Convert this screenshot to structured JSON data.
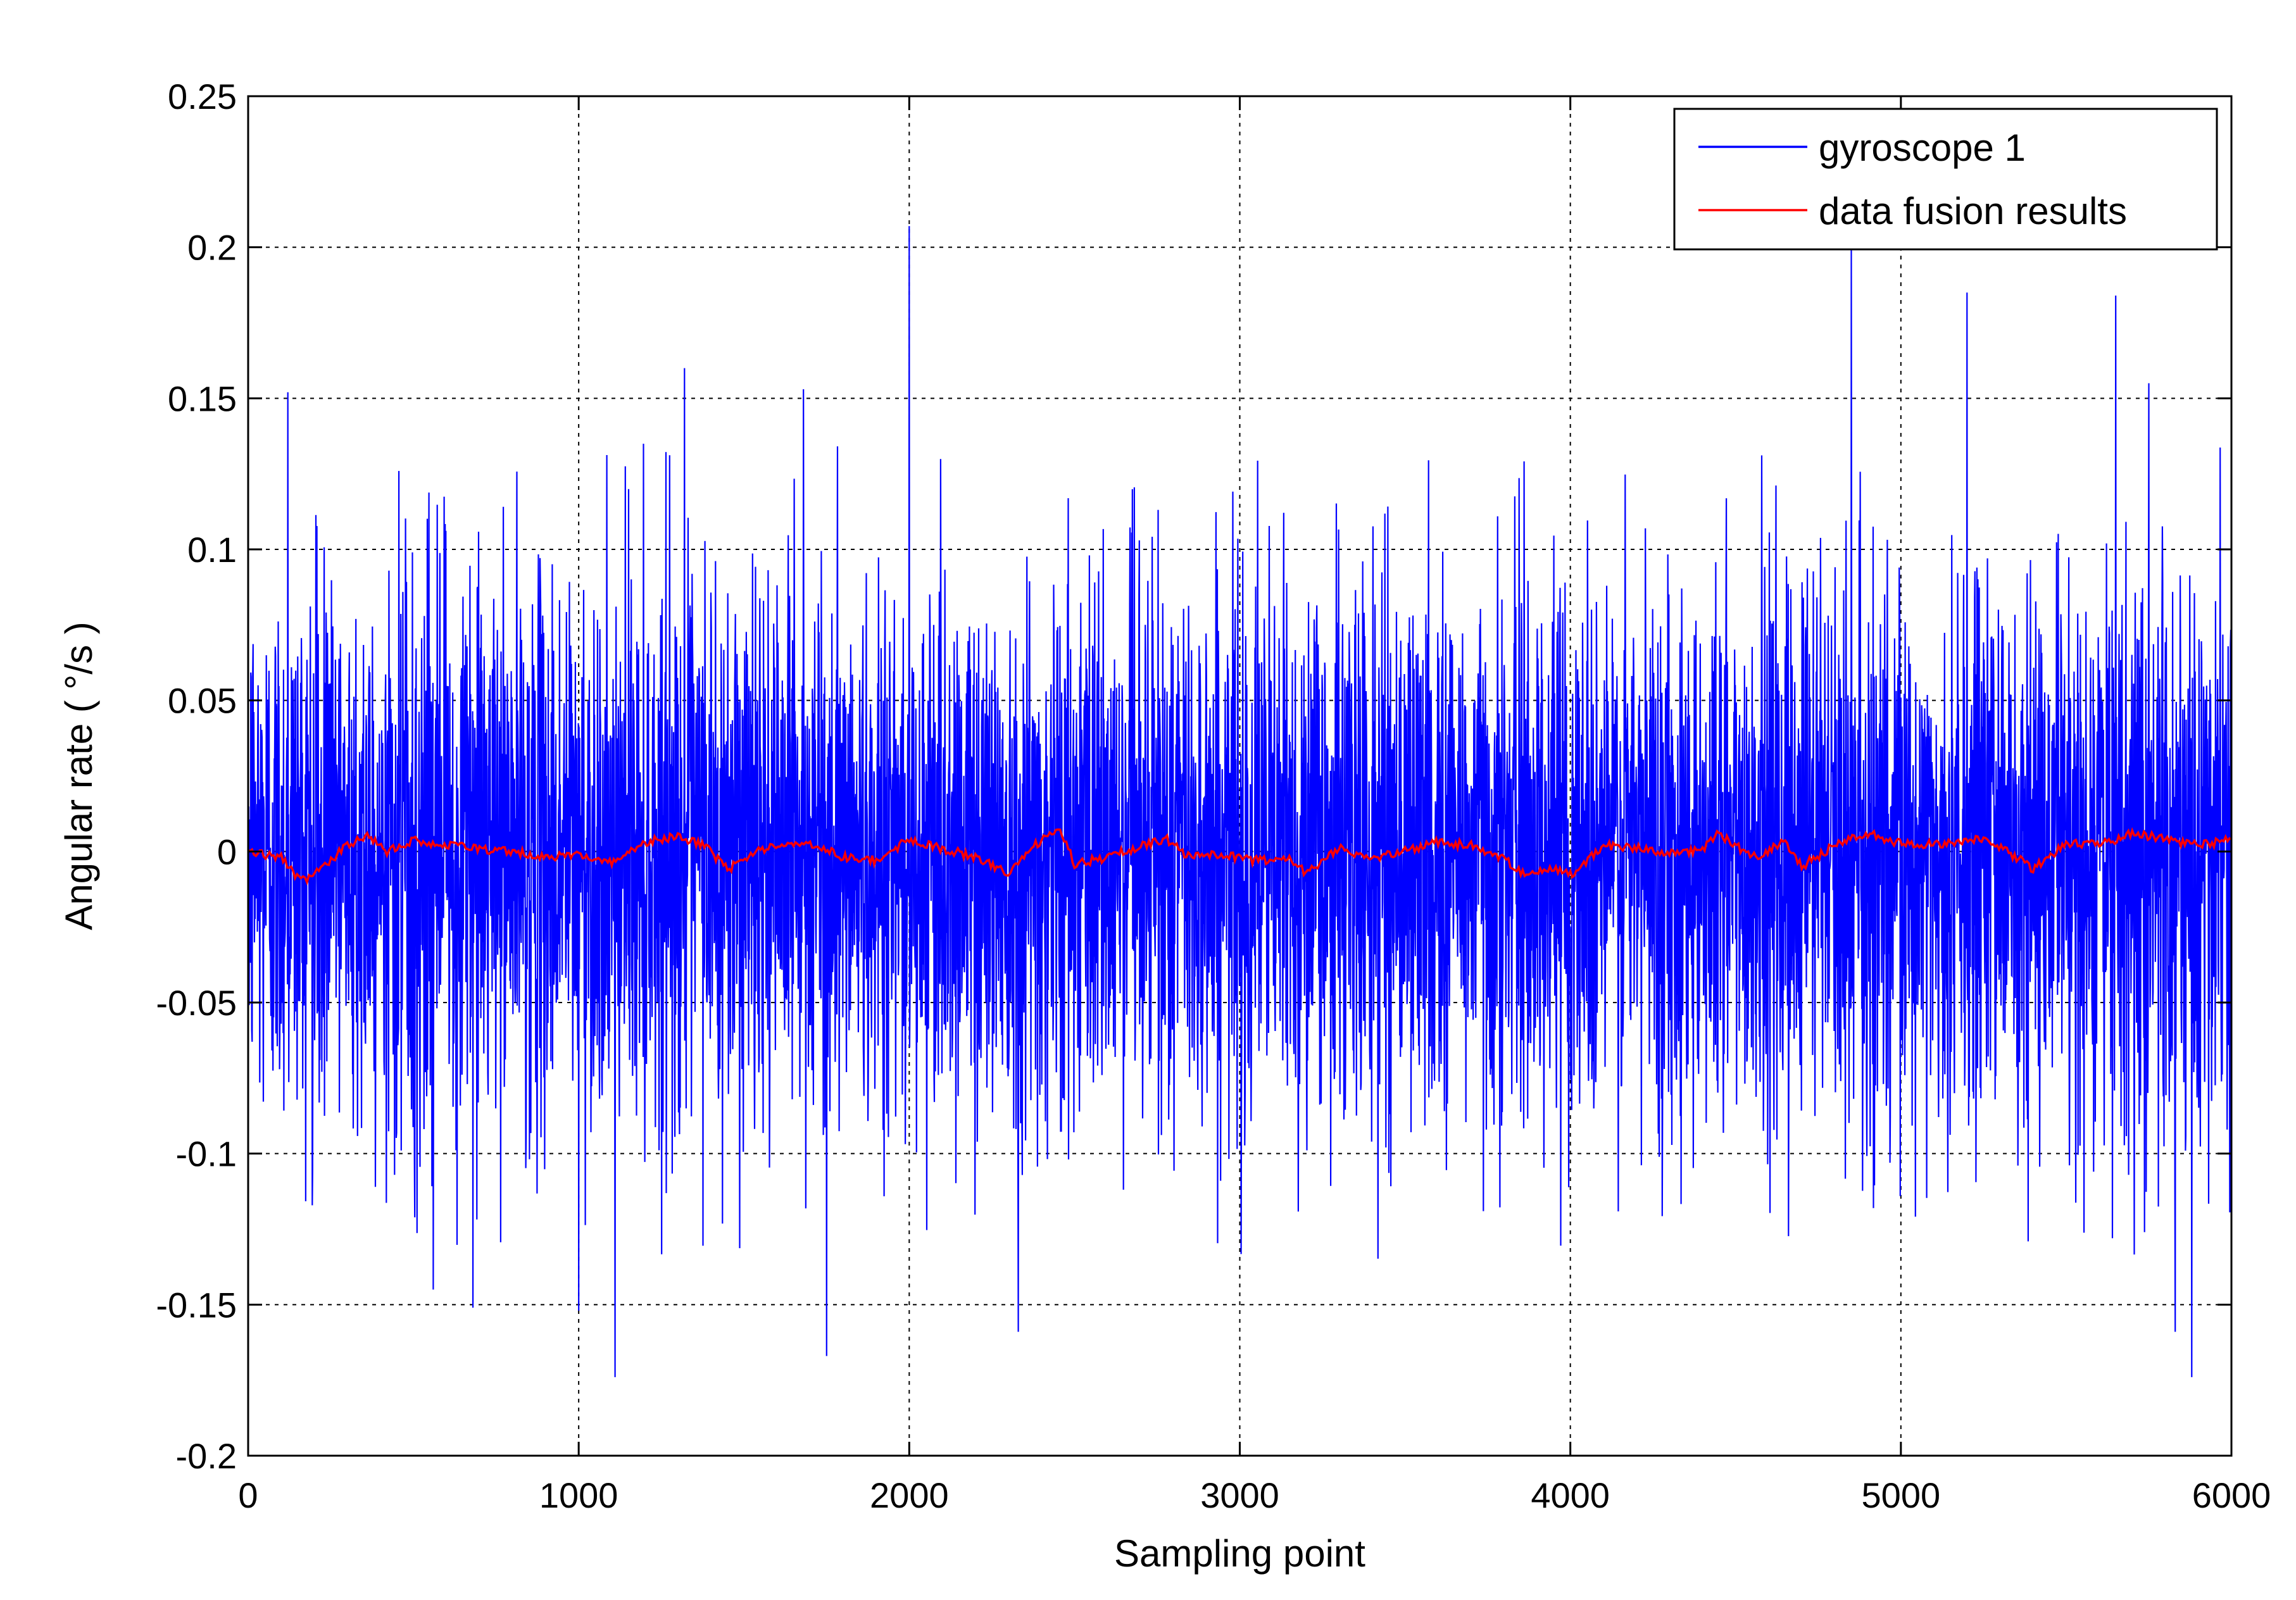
{
  "chart_data": {
    "type": "line",
    "title": "",
    "xlabel": "Sampling point",
    "ylabel": "Angular rate ( °/s )",
    "xlim": [
      0,
      6000
    ],
    "ylim": [
      -0.2,
      0.25
    ],
    "xticks": [
      0,
      1000,
      2000,
      3000,
      4000,
      5000,
      6000
    ],
    "xtick_labels": [
      "0",
      "1000",
      "2000",
      "3000",
      "4000",
      "5000",
      "6000"
    ],
    "yticks": [
      -0.2,
      -0.15,
      -0.1,
      -0.05,
      0,
      0.05,
      0.1,
      0.15,
      0.2,
      0.25
    ],
    "ytick_labels": [
      "-0.2",
      "-0.15",
      "-0.1",
      "-0.05",
      "0",
      "0.05",
      "0.1",
      "0.15",
      "0.2",
      "0.25"
    ],
    "grid": true,
    "legend_position": "top-right",
    "series": [
      {
        "name": "gyroscope 1",
        "color": "#0000ff",
        "description_level": "noise",
        "x_start": 0,
        "x_end": 6000,
        "noise_std": 0.045,
        "peaks": [
          {
            "x": 120,
            "y": 0.152
          },
          {
            "x": 680,
            "y": 0.16
          },
          {
            "x": 1320,
            "y": 0.16
          },
          {
            "x": 1680,
            "y": 0.153
          },
          {
            "x": 2000,
            "y": 0.207
          },
          {
            "x": 4850,
            "y": 0.2
          },
          {
            "x": 5200,
            "y": 0.185
          },
          {
            "x": 5650,
            "y": 0.184
          },
          {
            "x": 5750,
            "y": 0.155
          },
          {
            "x": 1000,
            "y": -0.152
          },
          {
            "x": 1110,
            "y": -0.174
          },
          {
            "x": 1750,
            "y": -0.167
          },
          {
            "x": 2330,
            "y": -0.159
          },
          {
            "x": 5830,
            "y": -0.159
          },
          {
            "x": 5880,
            "y": -0.174
          },
          {
            "x": 680,
            "y": -0.151
          },
          {
            "x": 560,
            "y": -0.145
          }
        ]
      },
      {
        "name": "data fusion results",
        "color": "#ff0000",
        "x": [
          0,
          100,
          160,
          220,
          300,
          360,
          420,
          500,
          600,
          700,
          800,
          900,
          1000,
          1100,
          1200,
          1300,
          1380,
          1450,
          1550,
          1650,
          1700,
          1800,
          1900,
          2000,
          2100,
          2200,
          2300,
          2400,
          2450,
          2500,
          2600,
          2700,
          2780,
          2850,
          2950,
          3050,
          3150,
          3200,
          3300,
          3400,
          3500,
          3600,
          3700,
          3800,
          3850,
          3950,
          4000,
          4100,
          4200,
          4300,
          4400,
          4450,
          4550,
          4650,
          4700,
          4800,
          4900,
          4950,
          5050,
          5150,
          5250,
          5350,
          5400,
          5500,
          5600,
          5700,
          5800,
          5900,
          6000
        ],
        "y": [
          0.0,
          -0.002,
          -0.01,
          -0.006,
          0.002,
          0.005,
          0.0,
          0.004,
          0.002,
          0.001,
          0.0,
          -0.002,
          -0.001,
          -0.004,
          0.003,
          0.005,
          0.002,
          -0.006,
          0.001,
          0.002,
          0.003,
          -0.002,
          -0.003,
          0.004,
          0.001,
          -0.002,
          -0.007,
          0.004,
          0.008,
          -0.004,
          -0.002,
          0.002,
          0.004,
          -0.002,
          -0.001,
          -0.003,
          -0.002,
          -0.007,
          0.001,
          -0.002,
          0.0,
          0.003,
          0.002,
          -0.002,
          -0.007,
          -0.006,
          -0.008,
          0.002,
          0.001,
          -0.001,
          0.001,
          0.006,
          -0.002,
          0.003,
          -0.005,
          0.002,
          0.006,
          0.004,
          0.002,
          0.003,
          0.004,
          -0.002,
          -0.006,
          0.003,
          0.002,
          0.006,
          0.004,
          0.002,
          0.004
        ]
      }
    ]
  }
}
